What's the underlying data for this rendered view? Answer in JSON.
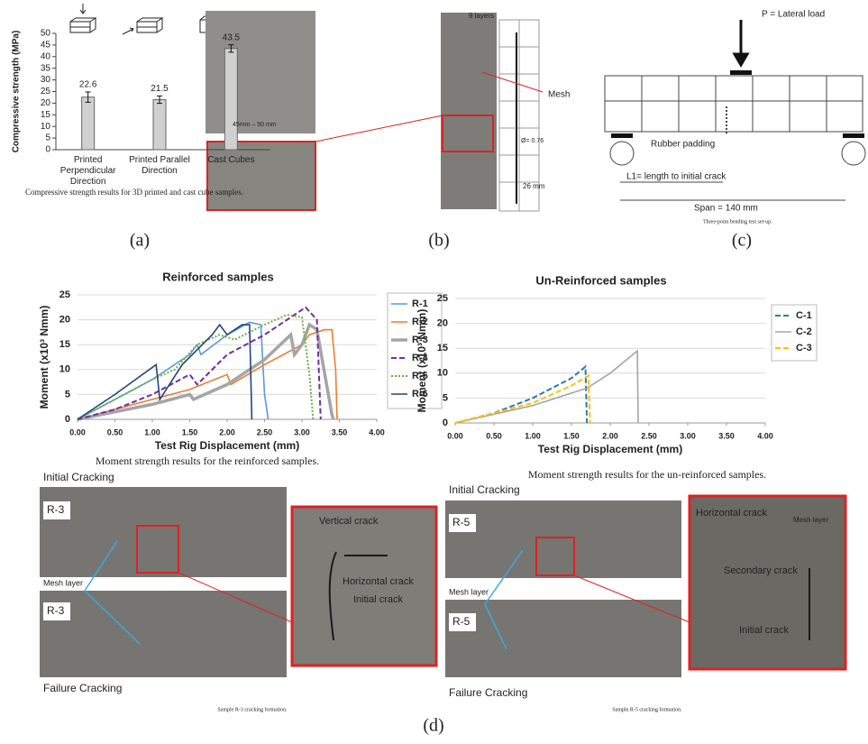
{
  "chart_data": [
    {
      "type": "bar",
      "y_label": "Compressive strength (MPa)",
      "categories": [
        "Printed Perpendicular Direction",
        "Printed Parallel Direction",
        "Cast Cubes"
      ],
      "values": [
        22.6,
        21.5,
        43.5
      ],
      "errors": [
        2.2,
        1.6,
        1.6
      ],
      "color": "#d0d0d0",
      "ylim": [
        0,
        50
      ],
      "yticks": [
        0,
        5,
        10,
        15,
        20,
        25,
        30,
        35,
        40,
        45,
        50
      ]
    },
    {
      "type": "line",
      "title": "Reinforced samples",
      "x_label": "Test Rig Displacement (mm)",
      "y_label": "Moment (x10³ Nmm)",
      "xlim": [
        0,
        4
      ],
      "xticks": [
        {
          "value": 0,
          "label": "0.00"
        },
        {
          "value": 0.5,
          "label": "0.50"
        },
        {
          "value": 1,
          "label": "1.00"
        },
        {
          "value": 1.5,
          "label": "1.50"
        },
        {
          "value": 2,
          "label": "2.00"
        },
        {
          "value": 2.5,
          "label": "2.50"
        },
        {
          "value": 3,
          "label": "3.00"
        },
        {
          "value": 3.5,
          "label": "3.50"
        },
        {
          "value": 4,
          "label": "4.00"
        }
      ],
      "ylim": [
        0,
        25
      ],
      "yticks": [
        0,
        5,
        10,
        15,
        20,
        25
      ],
      "grid": true,
      "series": [
        {
          "name": "R-1",
          "color": "#5b9bd5",
          "style": "solid",
          "x": [
            0,
            1.0,
            1.5,
            1.6,
            1.65,
            2.0,
            2.3,
            2.45,
            2.5,
            2.55
          ],
          "values": [
            0,
            8,
            13,
            15,
            13,
            17,
            19.5,
            19,
            5,
            0
          ]
        },
        {
          "name": "R-2",
          "color": "#ed7d31",
          "style": "solid",
          "x": [
            0,
            1,
            1.5,
            2.0,
            2.05,
            2.5,
            3.0,
            3.1,
            3.3,
            3.4,
            3.45,
            3.47
          ],
          "values": [
            0,
            4,
            6,
            9,
            7,
            11,
            15,
            17,
            18,
            18,
            10,
            0
          ]
        },
        {
          "name": "R-3",
          "color": "#a5a5a5",
          "style": "thick",
          "x": [
            0,
            1,
            1.5,
            1.55,
            2,
            2.5,
            2.85,
            2.9,
            3.0,
            3.1,
            3.2,
            3.4,
            3.42
          ],
          "values": [
            0,
            3,
            5,
            4,
            7,
            12,
            17,
            13,
            15,
            19,
            18,
            1,
            0
          ]
        },
        {
          "name": "R-4",
          "color": "#7030a0",
          "style": "dashed",
          "x": [
            0,
            0.5,
            1,
            1.5,
            1.6,
            2,
            2.5,
            2.9,
            3.05,
            3.2,
            3.25
          ],
          "values": [
            0,
            2,
            5,
            9,
            7,
            13,
            17,
            21,
            22.5,
            20,
            0
          ]
        },
        {
          "name": "R-5",
          "color": "#70ad47",
          "style": "dotted",
          "x": [
            0,
            0.5,
            1,
            1.3,
            1.6,
            1.9,
            2.1,
            2.5,
            2.8,
            3.0,
            3.1,
            3.15
          ],
          "values": [
            0,
            4,
            8,
            10,
            15,
            17,
            16,
            19,
            21,
            20.5,
            9,
            0
          ]
        },
        {
          "name": "R-6",
          "color": "#264478",
          "style": "solid",
          "x": [
            0,
            0.5,
            1.05,
            1.1,
            1.4,
            1.8,
            1.9,
            2.0,
            2.2,
            2.3,
            2.33
          ],
          "values": [
            0,
            5,
            11,
            4,
            11,
            17,
            19,
            17,
            19,
            19,
            0
          ]
        }
      ]
    },
    {
      "type": "line",
      "title": "Un-Reinforced samples",
      "x_label": "Test Rig Displacement (mm)",
      "y_label": "Moment (x10³ Nmm)",
      "xlim": [
        0,
        4
      ],
      "xticks": [
        {
          "value": 0,
          "label": "0.00"
        },
        {
          "value": 0.5,
          "label": "0.50"
        },
        {
          "value": 1,
          "label": "1.00"
        },
        {
          "value": 1.5,
          "label": "1.50"
        },
        {
          "value": 2,
          "label": "2.00"
        },
        {
          "value": 2.5,
          "label": "2.50"
        },
        {
          "value": 3,
          "label": "3.00"
        },
        {
          "value": 3.5,
          "label": "3.50"
        },
        {
          "value": 4,
          "label": "4.00"
        }
      ],
      "ylim": [
        0,
        25
      ],
      "yticks": [
        0,
        5,
        10,
        15,
        20,
        25
      ],
      "grid": true,
      "series": [
        {
          "name": "C-1",
          "color": "#2e75b6",
          "style": "dashed",
          "x": [
            0,
            0.5,
            1,
            1.5,
            1.68,
            1.7
          ],
          "values": [
            0,
            2,
            5,
            9,
            11.3,
            0
          ]
        },
        {
          "name": "C-2",
          "color": "#a5a5a5",
          "style": "solid",
          "x": [
            0,
            1,
            1.7,
            2,
            2.35,
            2.36
          ],
          "values": [
            0,
            3.5,
            7,
            10,
            14.5,
            0
          ]
        },
        {
          "name": "C-3",
          "color": "#ffc000",
          "style": "dashed",
          "x": [
            0,
            1,
            1.5,
            1.72,
            1.74
          ],
          "values": [
            0,
            4,
            7.5,
            9.5,
            0
          ]
        }
      ]
    }
  ],
  "panel_a": {
    "caption": "Compressive strength results for 3D printed and cast cube samples.",
    "label": "(a)"
  },
  "panel_b": {
    "layers": "9 layers",
    "mesh": "Mesh",
    "width": "45mm – 50 mm",
    "diameter": "Ø= 0.76",
    "spacing": "26 mm",
    "label": "(b)"
  },
  "panel_c": {
    "load": "P = Lateral load",
    "padding": "Rubber padding",
    "crack_length": "L1= length to initial crack",
    "span": "Span = 140 mm",
    "caption": "Three-point bending test set-up.",
    "label": "(c)"
  },
  "panel_d": {
    "caption_left": "Moment strength results for the reinforced samples.",
    "caption_right": "Moment strength results for the un-reinforced samples.",
    "left": {
      "initial": "Initial Cracking",
      "sample_top": "R-3",
      "mesh": "Mesh layer",
      "sample_bottom": "R-3",
      "failure": "Failure Cracking",
      "vertical": "Vertical crack",
      "horizontal": "Horizontal  crack",
      "initial_crack": "Initial crack",
      "caption": "Sample R-3 cracking formation."
    },
    "right": {
      "initial": "Initial Cracking",
      "sample_top": "R-5",
      "mesh": "Mesh layer",
      "sample_bottom": "R-5",
      "failure": "Failure Cracking",
      "horizontal": "Horizontal crack",
      "mesh_zoom": "Mesh layer",
      "secondary": "Secondary crack",
      "initial_crack": "Initial crack",
      "caption": "Sample R-5 cracking formation."
    },
    "label": "(d)"
  }
}
